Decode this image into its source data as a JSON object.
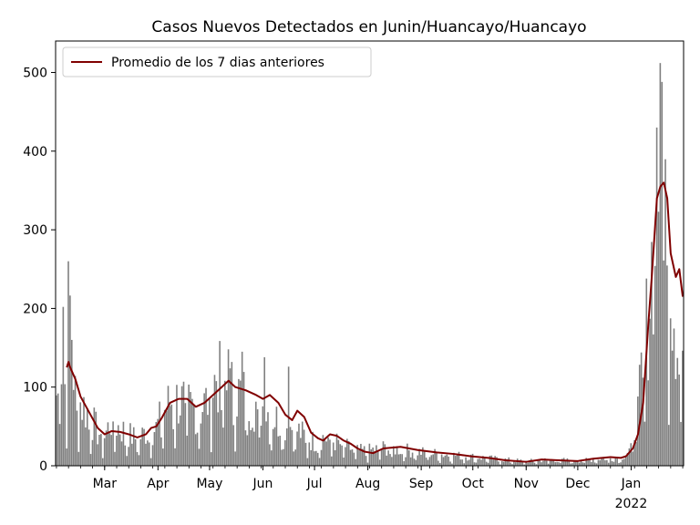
{
  "chart_data": {
    "type": "bar",
    "title": "Casos Nuevos Detectados en Junin/Huancayo/Huancayo",
    "xlabel": "",
    "ylabel": "",
    "x_start": "2021-02-01",
    "x_end": "2022-01-31",
    "ylim": [
      0,
      540
    ],
    "y_ticks": [
      0,
      100,
      200,
      300,
      400,
      500
    ],
    "x_ticks": [
      {
        "date": "2021-03-01",
        "label": "Mar"
      },
      {
        "date": "2021-04-01",
        "label": "Apr"
      },
      {
        "date": "2021-05-01",
        "label": "May"
      },
      {
        "date": "2021-06-01",
        "label": "Jun"
      },
      {
        "date": "2021-07-01",
        "label": "Jul"
      },
      {
        "date": "2021-08-01",
        "label": "Aug"
      },
      {
        "date": "2021-09-01",
        "label": "Sep"
      },
      {
        "date": "2021-10-01",
        "label": "Oct"
      },
      {
        "date": "2021-11-01",
        "label": "Nov"
      },
      {
        "date": "2021-12-01",
        "label": "Dec"
      },
      {
        "date": "2022-01-01",
        "label": "Jan",
        "sublabel": "2022"
      }
    ],
    "grid": false,
    "legend_position": "top-left",
    "bar_color": "#808080",
    "line_color": "#800000",
    "legend": [
      {
        "name": "Promedio de los 7 dias anteriores",
        "color": "#800000"
      }
    ],
    "daily_keypoints": [
      [
        "2021-02-01",
        95
      ],
      [
        "2021-02-03",
        88
      ],
      [
        "2021-02-05",
        200
      ],
      [
        "2021-02-07",
        110
      ],
      [
        "2021-02-08",
        260
      ],
      [
        "2021-02-10",
        160
      ],
      [
        "2021-02-12",
        95
      ],
      [
        "2021-02-15",
        85
      ],
      [
        "2021-02-20",
        70
      ],
      [
        "2021-02-25",
        45
      ],
      [
        "2021-03-01",
        40
      ],
      [
        "2021-03-05",
        60
      ],
      [
        "2021-03-10",
        50
      ],
      [
        "2021-03-15",
        42
      ],
      [
        "2021-03-20",
        35
      ],
      [
        "2021-03-25",
        45
      ],
      [
        "2021-03-31",
        50
      ],
      [
        "2021-04-05",
        75
      ],
      [
        "2021-04-10",
        90
      ],
      [
        "2021-04-15",
        85
      ],
      [
        "2021-04-20",
        80
      ],
      [
        "2021-04-25",
        75
      ],
      [
        "2021-05-01",
        90
      ],
      [
        "2021-05-05",
        120
      ],
      [
        "2021-05-10",
        105
      ],
      [
        "2021-05-15",
        100
      ],
      [
        "2021-05-20",
        95
      ],
      [
        "2021-05-25",
        85
      ],
      [
        "2021-06-01",
        80
      ],
      [
        "2021-06-05",
        70
      ],
      [
        "2021-06-10",
        60
      ],
      [
        "2021-06-15",
        55
      ],
      [
        "2021-06-20",
        50
      ],
      [
        "2021-06-25",
        40
      ],
      [
        "2021-07-01",
        32
      ],
      [
        "2021-07-05",
        38
      ],
      [
        "2021-07-10",
        36
      ],
      [
        "2021-07-15",
        30
      ],
      [
        "2021-07-20",
        25
      ],
      [
        "2021-07-25",
        20
      ],
      [
        "2021-08-01",
        20
      ],
      [
        "2021-08-10",
        24
      ],
      [
        "2021-08-20",
        22
      ],
      [
        "2021-09-01",
        18
      ],
      [
        "2021-09-15",
        15
      ],
      [
        "2021-10-01",
        12
      ],
      [
        "2021-10-15",
        9
      ],
      [
        "2021-11-01",
        6
      ],
      [
        "2021-11-15",
        8
      ],
      [
        "2021-12-01",
        7
      ],
      [
        "2021-12-15",
        10
      ],
      [
        "2021-12-25",
        10
      ],
      [
        "2021-12-31",
        20
      ],
      [
        "2022-01-05",
        70
      ],
      [
        "2022-01-10",
        180
      ],
      [
        "2022-01-14",
        300
      ],
      [
        "2022-01-17",
        420
      ],
      [
        "2022-01-19",
        480
      ],
      [
        "2022-01-21",
        350
      ],
      [
        "2022-01-24",
        260
      ],
      [
        "2022-01-27",
        200
      ],
      [
        "2022-01-31",
        150
      ]
    ],
    "daily_labeled_peaks": [
      [
        "2021-02-08",
        260
      ],
      [
        "2021-02-05",
        202
      ],
      [
        "2021-02-10",
        160
      ],
      [
        "2021-05-12",
        148
      ],
      [
        "2021-05-20",
        145
      ],
      [
        "2021-06-02",
        138
      ],
      [
        "2021-06-16",
        126
      ],
      [
        "2022-01-18",
        512
      ],
      [
        "2022-01-19",
        488
      ],
      [
        "2022-01-16",
        430
      ]
    ],
    "rolling_avg_keypoints": [
      [
        "2021-02-07",
        125
      ],
      [
        "2021-02-08",
        132
      ],
      [
        "2021-02-09",
        125
      ],
      [
        "2021-02-12",
        110
      ],
      [
        "2021-02-15",
        88
      ],
      [
        "2021-02-20",
        68
      ],
      [
        "2021-02-25",
        48
      ],
      [
        "2021-03-01",
        40
      ],
      [
        "2021-03-05",
        44
      ],
      [
        "2021-03-10",
        43
      ],
      [
        "2021-03-15",
        40
      ],
      [
        "2021-03-20",
        36
      ],
      [
        "2021-03-25",
        40
      ],
      [
        "2021-03-28",
        48
      ],
      [
        "2021-03-31",
        50
      ],
      [
        "2021-04-03",
        60
      ],
      [
        "2021-04-08",
        80
      ],
      [
        "2021-04-13",
        85
      ],
      [
        "2021-04-18",
        85
      ],
      [
        "2021-04-23",
        75
      ],
      [
        "2021-04-28",
        80
      ],
      [
        "2021-05-03",
        90
      ],
      [
        "2021-05-08",
        100
      ],
      [
        "2021-05-12",
        108
      ],
      [
        "2021-05-16",
        100
      ],
      [
        "2021-05-22",
        96
      ],
      [
        "2021-05-28",
        90
      ],
      [
        "2021-06-01",
        85
      ],
      [
        "2021-06-05",
        90
      ],
      [
        "2021-06-10",
        80
      ],
      [
        "2021-06-14",
        65
      ],
      [
        "2021-06-18",
        58
      ],
      [
        "2021-06-21",
        70
      ],
      [
        "2021-06-25",
        62
      ],
      [
        "2021-06-29",
        42
      ],
      [
        "2021-07-03",
        35
      ],
      [
        "2021-07-06",
        32
      ],
      [
        "2021-07-10",
        40
      ],
      [
        "2021-07-14",
        38
      ],
      [
        "2021-07-18",
        32
      ],
      [
        "2021-07-22",
        28
      ],
      [
        "2021-07-26",
        22
      ],
      [
        "2021-07-30",
        18
      ],
      [
        "2021-08-04",
        16
      ],
      [
        "2021-08-10",
        22
      ],
      [
        "2021-08-20",
        24
      ],
      [
        "2021-08-30",
        20
      ],
      [
        "2021-09-10",
        17
      ],
      [
        "2021-09-20",
        15
      ],
      [
        "2021-09-30",
        12
      ],
      [
        "2021-10-10",
        10
      ],
      [
        "2021-10-20",
        7
      ],
      [
        "2021-11-01",
        5
      ],
      [
        "2021-11-10",
        8
      ],
      [
        "2021-11-20",
        7
      ],
      [
        "2021-12-01",
        6
      ],
      [
        "2021-12-10",
        9
      ],
      [
        "2021-12-20",
        11
      ],
      [
        "2021-12-26",
        10
      ],
      [
        "2021-12-29",
        12
      ],
      [
        "2022-01-02",
        22
      ],
      [
        "2022-01-05",
        40
      ],
      [
        "2022-01-08",
        80
      ],
      [
        "2022-01-11",
        180
      ],
      [
        "2022-01-13",
        240
      ],
      [
        "2022-01-16",
        340
      ],
      [
        "2022-01-18",
        355
      ],
      [
        "2022-01-20",
        360
      ],
      [
        "2022-01-22",
        340
      ],
      [
        "2022-01-24",
        270
      ],
      [
        "2022-01-27",
        240
      ],
      [
        "2022-01-29",
        250
      ],
      [
        "2022-01-31",
        215
      ]
    ]
  }
}
